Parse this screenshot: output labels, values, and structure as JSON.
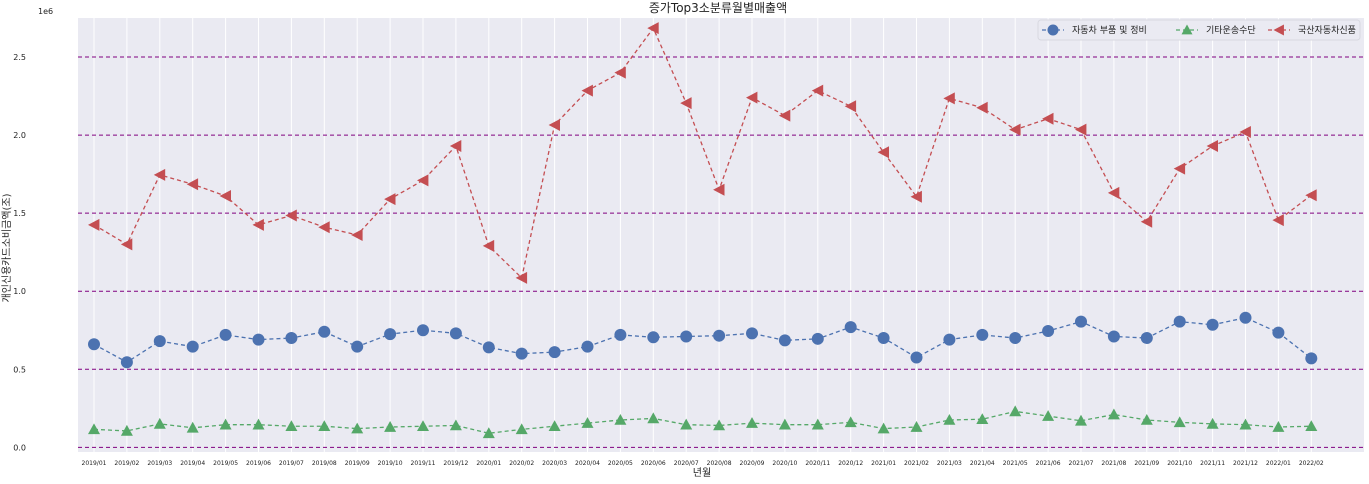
{
  "chart_data": {
    "type": "line",
    "title": "증가Top3소분류월별매출액",
    "xlabel": "년월",
    "ylabel": "개인신용카드소비금액(조)",
    "y_offset_text": "1e6",
    "ylim": [
      -30000,
      2750000
    ],
    "yticks": [
      0,
      500000,
      1000000,
      1500000,
      2000000,
      2500000
    ],
    "ytick_labels": [
      "0.0",
      "0.5",
      "1.0",
      "1.5",
      "2.0",
      "2.5"
    ],
    "grid": true,
    "h_reference_lines": "dashed purple at each y tick",
    "legend_position": "top-right",
    "categories": [
      "2019/01",
      "2019/02",
      "2019/03",
      "2019/04",
      "2019/05",
      "2019/06",
      "2019/07",
      "2019/08",
      "2019/09",
      "2019/10",
      "2019/11",
      "2019/12",
      "2020/01",
      "2020/02",
      "2020/03",
      "2020/04",
      "2020/05",
      "2020/06",
      "2020/07",
      "2020/08",
      "2020/09",
      "2020/10",
      "2020/11",
      "2020/12",
      "2021/01",
      "2021/02",
      "2021/03",
      "2021/04",
      "2021/05",
      "2021/06",
      "2021/07",
      "2021/08",
      "2021/09",
      "2021/10",
      "2021/11",
      "2021/12",
      "2022/01",
      "2022/02"
    ],
    "series": [
      {
        "name": "자동차 부품 및 정비",
        "color": "#4c72b0",
        "marker": "circle",
        "values": [
          660000,
          545000,
          680000,
          645000,
          720000,
          690000,
          700000,
          740000,
          645000,
          725000,
          750000,
          730000,
          640000,
          600000,
          610000,
          645000,
          720000,
          705000,
          710000,
          715000,
          730000,
          685000,
          695000,
          770000,
          700000,
          575000,
          690000,
          720000,
          700000,
          745000,
          805000,
          710000,
          700000,
          805000,
          785000,
          830000,
          735000,
          570000
        ]
      },
      {
        "name": "기타운송수단",
        "color": "#55a868",
        "marker": "triangle-up",
        "values": [
          115000,
          105000,
          150000,
          125000,
          145000,
          145000,
          135000,
          135000,
          120000,
          130000,
          135000,
          140000,
          90000,
          115000,
          135000,
          155000,
          175000,
          185000,
          145000,
          140000,
          155000,
          145000,
          145000,
          160000,
          120000,
          130000,
          175000,
          180000,
          230000,
          200000,
          170000,
          210000,
          175000,
          160000,
          150000,
          145000,
          130000,
          135000
        ]
      },
      {
        "name": "국산자동차신품",
        "color": "#c44e52",
        "marker": "triangle-left",
        "values": [
          1425000,
          1300000,
          1745000,
          1685000,
          1610000,
          1425000,
          1485000,
          1410000,
          1360000,
          1590000,
          1710000,
          1930000,
          1290000,
          1085000,
          2065000,
          2285000,
          2400000,
          2685000,
          2205000,
          1650000,
          2240000,
          2125000,
          2285000,
          2185000,
          1890000,
          1605000,
          2235000,
          2175000,
          2035000,
          2105000,
          2035000,
          1630000,
          1445000,
          1785000,
          1930000,
          2020000,
          1455000,
          1615000
        ]
      }
    ]
  }
}
